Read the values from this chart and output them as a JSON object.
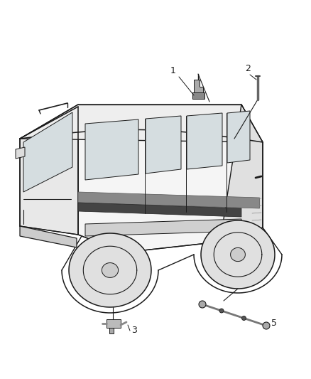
{
  "bg_color": "#ffffff",
  "line_color": "#1a1a1a",
  "label_color": "#1a1a1a",
  "fig_width": 4.38,
  "fig_height": 5.33,
  "dpi": 100,
  "label_fontsize": 9,
  "lw": 1.0,
  "van_color": "#f0f0f0",
  "van_dark": "#cccccc"
}
